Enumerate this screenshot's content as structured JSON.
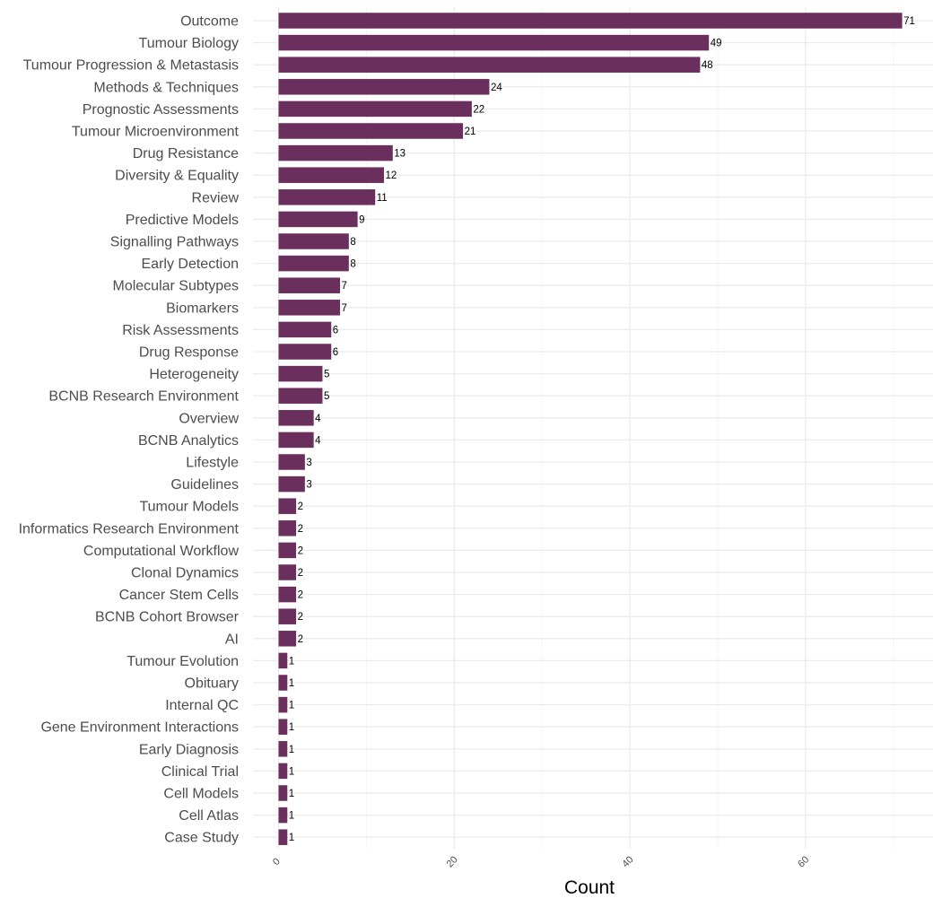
{
  "chart_data": {
    "type": "bar",
    "orientation": "horizontal",
    "title": "",
    "xlabel": "Count",
    "ylabel": "",
    "xlim": [
      0,
      73.5
    ],
    "x_ticks": [
      0,
      20,
      40,
      60
    ],
    "grid": true,
    "legend": "none",
    "bar_color": "#6b2f5e",
    "categories": [
      "Outcome",
      "Tumour Biology",
      "Tumour Progression & Metastasis",
      "Methods & Techniques",
      "Prognostic Assessments",
      "Tumour Microenvironment",
      "Drug Resistance",
      "Diversity & Equality",
      "Review",
      "Predictive Models",
      "Signalling Pathways",
      "Early Detection",
      "Molecular Subtypes",
      "Biomarkers",
      "Risk Assessments",
      "Drug Response",
      "Heterogeneity",
      "BCNB Research Environment",
      "Overview",
      "BCNB Analytics",
      "Lifestyle",
      "Guidelines",
      "Tumour Models",
      "Informatics Research Environment",
      "Computational Workflow",
      "Clonal Dynamics",
      "Cancer Stem Cells",
      "BCNB Cohort Browser",
      "AI",
      "Tumour Evolution",
      "Obituary",
      "Internal QC",
      "Gene Environment Interactions",
      "Early Diagnosis",
      "Clinical Trial",
      "Cell Models",
      "Cell Atlas",
      "Case Study"
    ],
    "values": [
      71,
      49,
      48,
      24,
      22,
      21,
      13,
      12,
      11,
      9,
      8,
      8,
      7,
      7,
      6,
      6,
      5,
      5,
      4,
      4,
      3,
      3,
      2,
      2,
      2,
      2,
      2,
      2,
      2,
      1,
      1,
      1,
      1,
      1,
      1,
      1,
      1,
      1
    ]
  }
}
